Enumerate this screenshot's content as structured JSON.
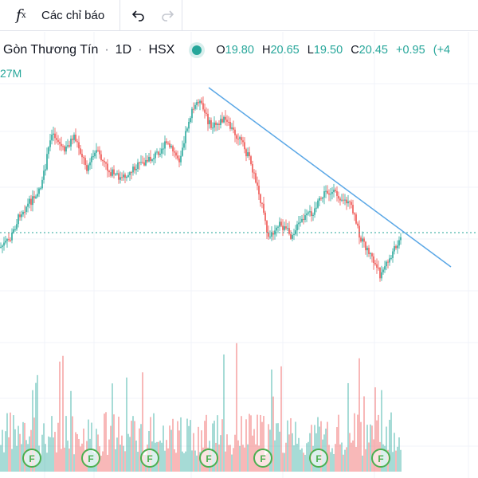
{
  "toolbar": {
    "fx_glyph": "f",
    "fx_sub": "x",
    "indicators_label": "Các chỉ báo",
    "undo_icon": "undo-icon",
    "redo_icon": "redo-icon"
  },
  "legend": {
    "symbol_title": "Gòn Thương Tín",
    "interval": "1D",
    "exchange": "HSX",
    "status_color": "#26a69a",
    "open_key": "O",
    "open": "19.80",
    "high_key": "H",
    "high": "20.65",
    "low_key": "L",
    "low": "19.50",
    "close_key": "C",
    "close": "20.45",
    "change": "+0.95",
    "change_pct": "(+4"
  },
  "volume_label": "27M",
  "colors": {
    "up": "#26a69a",
    "down": "#ef5350",
    "trendline": "#5aa7e6",
    "price_line": "#26a69a",
    "grid": "#f0f3fa",
    "marker": "#4caf50"
  },
  "markers": [
    {
      "label": "F"
    },
    {
      "label": "F"
    },
    {
      "label": "F"
    },
    {
      "label": "F"
    },
    {
      "label": "F"
    },
    {
      "label": "F"
    },
    {
      "label": "F"
    }
  ],
  "chart_data": {
    "type": "candlestick",
    "price_anchors": [
      {
        "i": 0,
        "p": 310
      },
      {
        "i": 6,
        "p": 300
      },
      {
        "i": 12,
        "p": 268
      },
      {
        "i": 20,
        "p": 250
      },
      {
        "i": 26,
        "p": 230
      },
      {
        "i": 32,
        "p": 165
      },
      {
        "i": 40,
        "p": 190
      },
      {
        "i": 46,
        "p": 170
      },
      {
        "i": 54,
        "p": 210
      },
      {
        "i": 60,
        "p": 190
      },
      {
        "i": 68,
        "p": 215
      },
      {
        "i": 76,
        "p": 225
      },
      {
        "i": 84,
        "p": 210
      },
      {
        "i": 94,
        "p": 200
      },
      {
        "i": 104,
        "p": 180
      },
      {
        "i": 112,
        "p": 200
      },
      {
        "i": 118,
        "p": 150
      },
      {
        "i": 124,
        "p": 125
      },
      {
        "i": 132,
        "p": 160
      },
      {
        "i": 140,
        "p": 150
      },
      {
        "i": 150,
        "p": 175
      },
      {
        "i": 156,
        "p": 200
      },
      {
        "i": 162,
        "p": 240
      },
      {
        "i": 168,
        "p": 300
      },
      {
        "i": 174,
        "p": 280
      },
      {
        "i": 182,
        "p": 295
      },
      {
        "i": 190,
        "p": 275
      },
      {
        "i": 196,
        "p": 265
      },
      {
        "i": 204,
        "p": 240
      },
      {
        "i": 212,
        "p": 245
      },
      {
        "i": 220,
        "p": 260
      },
      {
        "i": 226,
        "p": 300
      },
      {
        "i": 232,
        "p": 320
      },
      {
        "i": 238,
        "p": 345
      },
      {
        "i": 244,
        "p": 325
      },
      {
        "i": 250,
        "p": 300
      }
    ]
  }
}
